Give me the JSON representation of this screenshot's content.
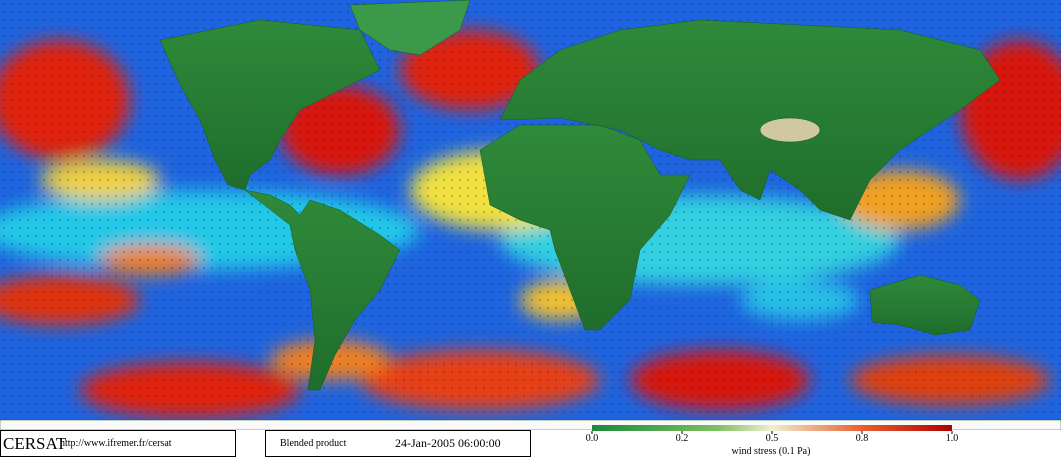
{
  "header": {
    "logo": "CERSAT",
    "url": "http://www.ifremer.fr/cersat"
  },
  "product": {
    "name": "Blended product",
    "datetime": "24-Jan-2005 06:00:00"
  },
  "colorbar": {
    "ticks": [
      {
        "value": 0,
        "label": "0.0"
      },
      {
        "value": 0.2,
        "label": "0.2"
      },
      {
        "value": 0.5,
        "label": "0.5"
      },
      {
        "value": 0.8,
        "label": "0.8"
      },
      {
        "value": 1,
        "label": "1.0"
      }
    ],
    "label": "wind stress (0.1 Pa)"
  }
}
